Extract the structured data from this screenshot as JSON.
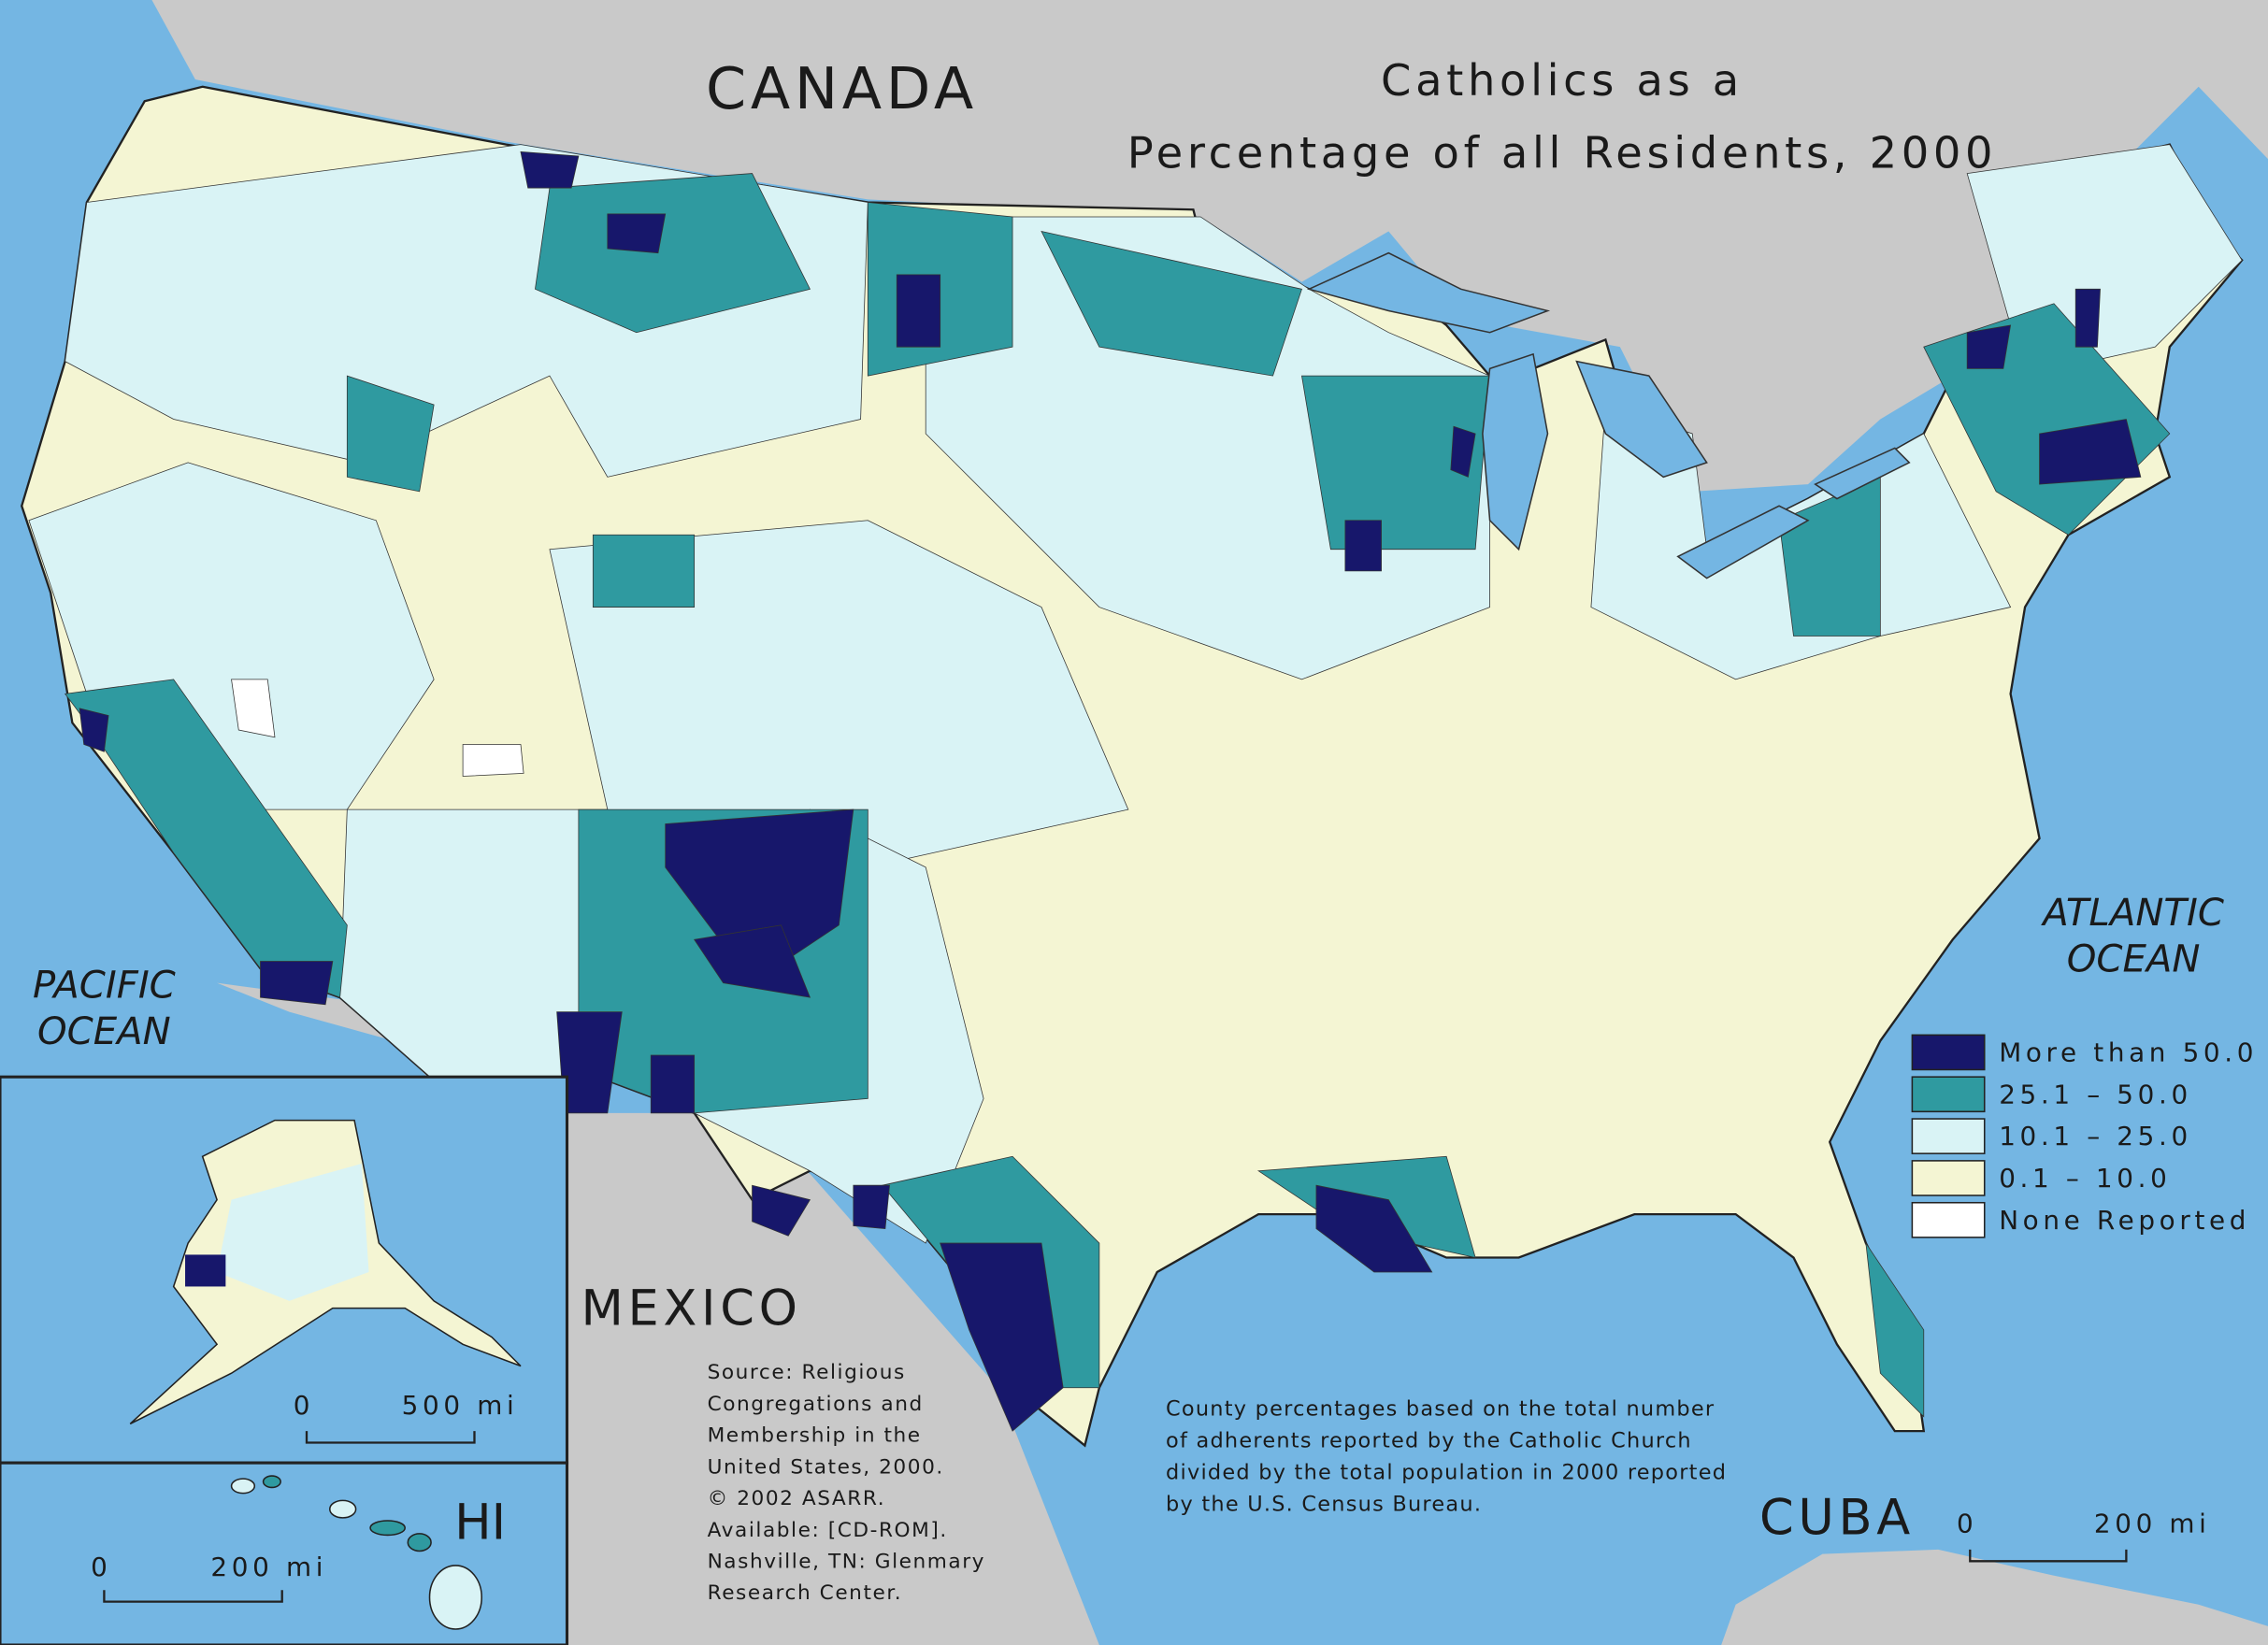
{
  "title": [
    "Catholics as a",
    "Percentage of all Residents, 2000"
  ],
  "labels": {
    "canada": "CANADA",
    "mexico": "MEXICO",
    "cuba": "CUBA",
    "hawaii": "HI",
    "pacific": [
      "PACIFIC",
      "OCEAN"
    ],
    "atlantic": [
      "ATLANTIC",
      "OCEAN"
    ]
  },
  "legend": [
    {
      "label": "More than 50.0",
      "color": "#17176b"
    },
    {
      "label": "25.1 – 50.0",
      "color": "#2f9aa0"
    },
    {
      "label": "10.1 – 25.0",
      "color": "#d9f3f5"
    },
    {
      "label": "0.1 – 10.0",
      "color": "#f4f5d3"
    },
    {
      "label": "None Reported",
      "color": "#ffffff"
    }
  ],
  "scale_bars": [
    {
      "start": "0",
      "end": "500 mi"
    },
    {
      "start": "0",
      "end": "200 mi"
    },
    {
      "start": "0",
      "end": "200 mi"
    }
  ],
  "source": [
    "Source:  Religious",
    "Congregations and",
    "Membership in the",
    "United States, 2000.",
    "© 2002 ASARR.",
    "Available: [CD-ROM].",
    "Nashville, TN: Glenmary",
    "Research Center."
  ],
  "note": [
    "County percentages based on the total number",
    "of adherents reported by the Catholic Church",
    "divided by the total population in 2000 reported",
    "by the U.S. Census Bureau."
  ]
}
